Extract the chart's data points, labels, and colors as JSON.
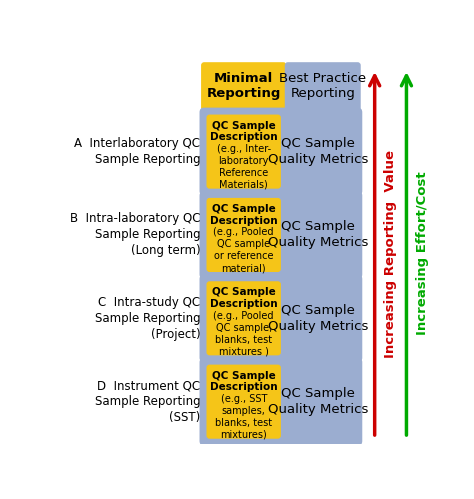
{
  "header_minimal": "Minimal\nReporting",
  "header_best": "Best Practice\nReporting",
  "header_minimal_color": "#F5C518",
  "header_best_color": "#9BADD0",
  "rows": [
    {
      "label": "A  Interlaboratory QC\n    Sample Reporting",
      "qc_title": "QC Sample\nDescription",
      "qc_body": "(e.g., Inter-\nlaboratory\nReference\nMaterials)",
      "metric_text": "QC Sample\nQuality Metrics"
    },
    {
      "label": "B  Intra-laboratory QC\n    Sample Reporting\n    (Long term)",
      "qc_title": "QC Sample\nDescription",
      "qc_body": "(e.g., Pooled\nQC sample\nor reference\nmaterial)",
      "metric_text": "QC Sample\nQuality Metrics"
    },
    {
      "label": "C  Intra-study QC\n    Sample Reporting\n    (Project)",
      "qc_title": "QC Sample\nDescription",
      "qc_body": "(e.g., Pooled\nQC sample,\nblanks, test\nmixtures )",
      "metric_text": "QC Sample\nQuality Metrics"
    },
    {
      "label": "D  Instrument QC\n    Sample Reporting\n    (SST)",
      "qc_title": "QC Sample\nDescription",
      "qc_body": "(e.g., SST\nsamples,\nblanks, test\nmixtures)",
      "metric_text": "QC Sample\nQuality Metrics"
    }
  ],
  "outer_box_color": "#9BADD0",
  "inner_box_color": "#F5C518",
  "arrow_red_label": "Increasing Reporting  Value",
  "arrow_green_label": "Increasing Effort/Cost",
  "arrow_red_color": "#CC0000",
  "arrow_green_color": "#00AA00",
  "label_fontsize": 8.5,
  "header_fontsize": 9.5,
  "qc_title_fontsize": 7.5,
  "qc_body_fontsize": 7.0,
  "metric_fontsize": 9.5,
  "arrow_label_fontsize": 9.5,
  "bg_color": "#FFFFFF"
}
